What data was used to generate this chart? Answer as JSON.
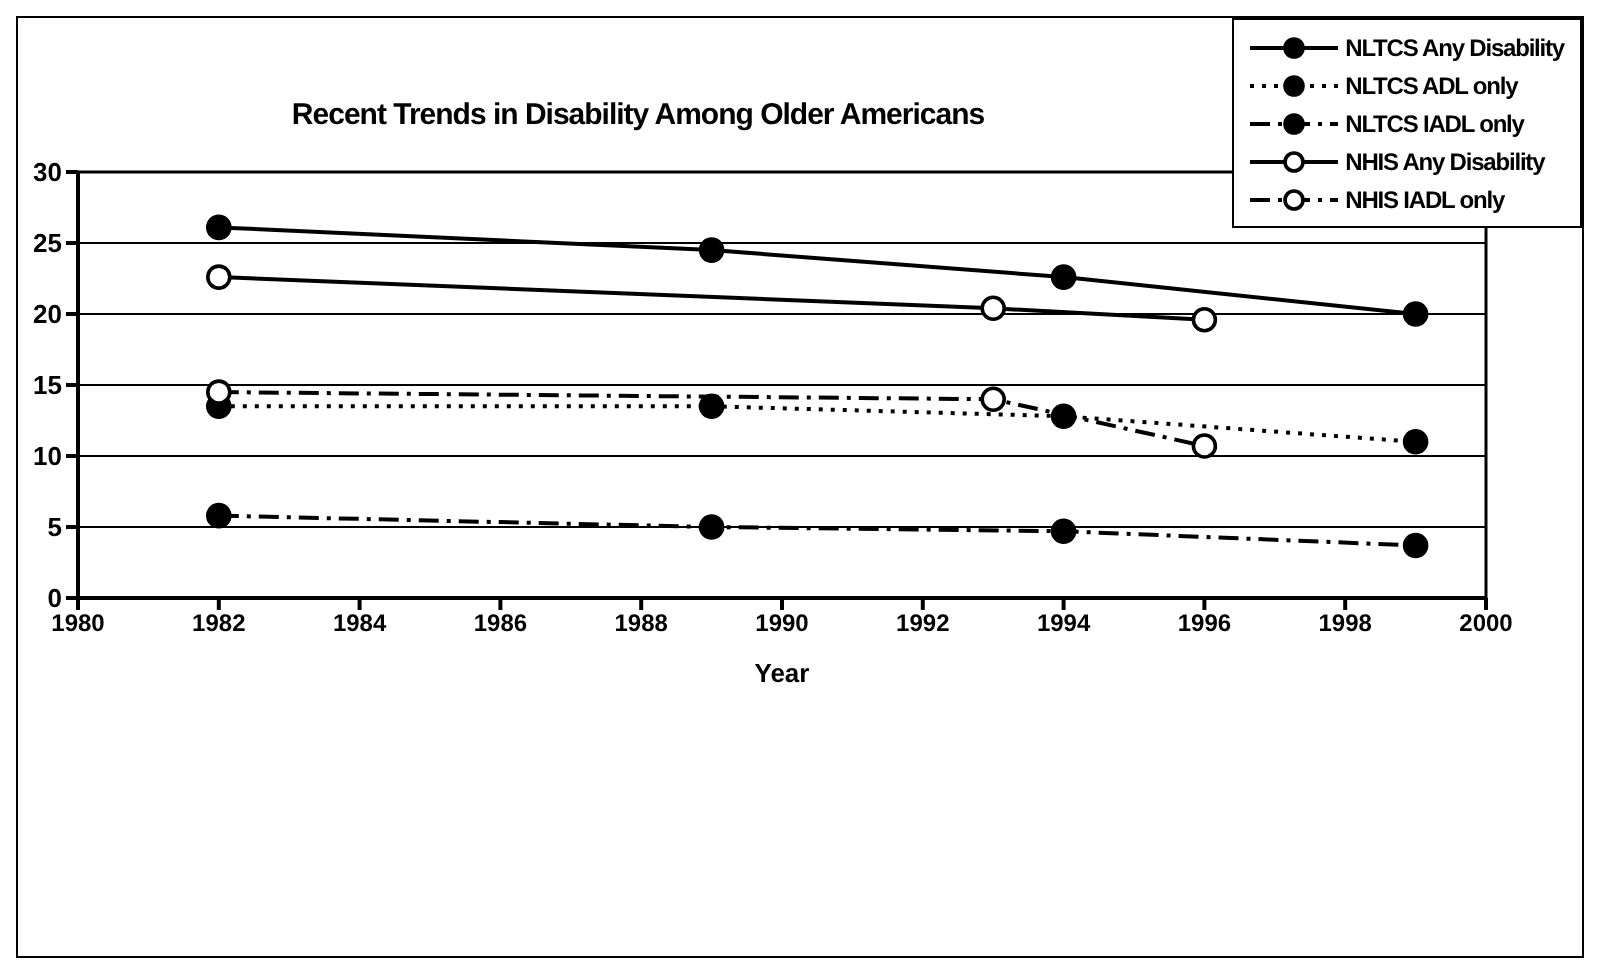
{
  "chart_data": {
    "type": "line",
    "title": "Recent Trends in Disability Among Older Americans",
    "xlabel": "Year",
    "xlim": [
      1980,
      2000
    ],
    "xticks": [
      1980,
      1982,
      1984,
      1986,
      1988,
      1990,
      1992,
      1994,
      1996,
      1998,
      2000
    ],
    "ylim": [
      0,
      30
    ],
    "yticks": [
      0,
      5,
      10,
      15,
      20,
      25,
      30
    ],
    "grid": "y",
    "legend": "top right",
    "marker": "circle",
    "series": [
      {
        "name": "NLTCS Any Disability",
        "color": "#000000",
        "line_style": "solid",
        "x": [
          1982,
          1989,
          1994,
          1999
        ],
        "values": [
          26.1,
          24.5,
          22.6,
          20.0
        ]
      },
      {
        "name": "NLTCS ADL only",
        "color": "#000000",
        "line_style": "dotted",
        "x": [
          1982,
          1989,
          1994,
          1999
        ],
        "values": [
          13.5,
          13.5,
          12.8,
          11.0
        ]
      },
      {
        "name": "NLTCS IADL only",
        "color": "#000000",
        "line_style": "dashed",
        "x": [
          1982,
          1989,
          1994,
          1999
        ],
        "values": [
          5.8,
          5.0,
          4.7,
          3.7
        ]
      },
      {
        "name": "NHIS Any Disability",
        "color": "#000000",
        "line_style": "solid",
        "x": [
          1982,
          1993,
          1996
        ],
        "values": [
          22.6,
          20.4,
          19.6
        ]
      },
      {
        "name": "NHIS IADL only",
        "color": "#000000",
        "line_style": "dashed",
        "x": [
          1982,
          1993,
          1996
        ],
        "values": [
          14.5,
          14.0,
          10.7
        ]
      }
    ]
  }
}
